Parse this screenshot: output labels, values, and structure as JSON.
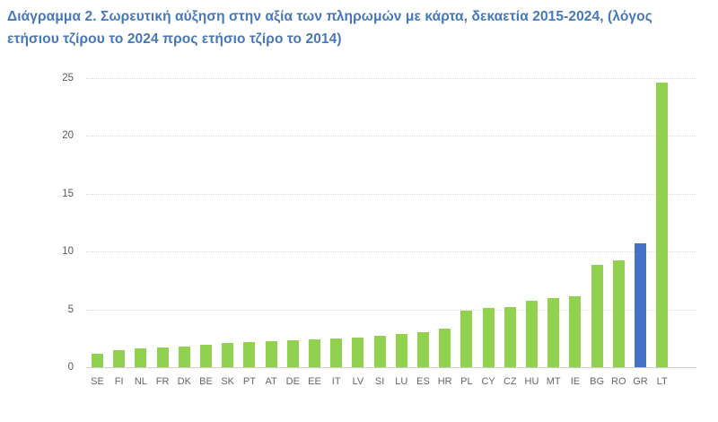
{
  "title": {
    "line1": "Διάγραμμα 2. Σωρευτική αύξηση στην αξία των πληρωμών με κάρτα, δεκαετία 2015-2024, (λόγος",
    "line2": "ετήσιου τζίρου το 2024 προς ετήσιο τζίρο το 2014)"
  },
  "colors": {
    "title_text": "#4677b8",
    "bar": "#92d050",
    "highlight_bar": "#4472c4",
    "axis_text": "#595959",
    "x_axis_text": "#666666",
    "gridline": "#d9d9d9",
    "axis_line": "#cfcfcf",
    "background": "#ffffff"
  },
  "chart_data": {
    "type": "bar",
    "title": "Διάγραμμα 2. Σωρευτική αύξηση στην αξία των πληρωμών με κάρτα, δεκαετία 2015-2024, (λόγος ετήσιου τζίρου το 2024 προς ετήσιο τζίρο το 2014)",
    "xlabel": "",
    "ylabel": "",
    "categories": [
      "SE",
      "FI",
      "NL",
      "FR",
      "DK",
      "BE",
      "SK",
      "PT",
      "AT",
      "DE",
      "EE",
      "IT",
      "LV",
      "SI",
      "LU",
      "ES",
      "HR",
      "PL",
      "CY",
      "CZ",
      "HU",
      "MT",
      "IE",
      "BG",
      "RO",
      "GR",
      "LT"
    ],
    "values": [
      1.2,
      1.5,
      1.6,
      1.7,
      1.8,
      1.9,
      2.1,
      2.2,
      2.25,
      2.3,
      2.4,
      2.5,
      2.55,
      2.7,
      2.9,
      3.0,
      3.3,
      4.9,
      5.1,
      5.2,
      5.7,
      6.0,
      6.1,
      8.8,
      9.2,
      10.7,
      24.6
    ],
    "highlight_category": "GR",
    "y_ticks": [
      0,
      5,
      10,
      15,
      20,
      25
    ],
    "ylim": [
      0,
      25
    ],
    "grid": "horizontal-dotted",
    "legend": "none"
  }
}
